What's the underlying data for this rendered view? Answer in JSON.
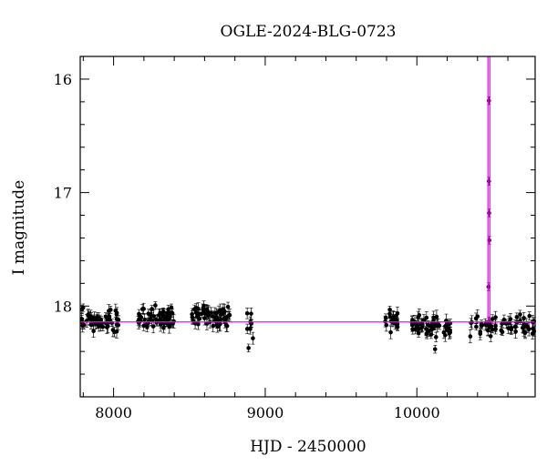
{
  "chart_data": {
    "type": "scatter",
    "title": "OGLE-2024-BLG-0723",
    "xlabel": "HJD - 2450000",
    "ylabel": "I magnitude",
    "xlim": [
      7780,
      10780
    ],
    "ylim": [
      18.8,
      15.8
    ],
    "y_inverted": true,
    "x_ticks": [
      8000,
      9000,
      10000
    ],
    "y_ticks": [
      16,
      17,
      18
    ],
    "x_tick_labels": [
      "8000",
      "9000",
      "10000"
    ],
    "y_tick_labels": [
      "16",
      "17",
      "18"
    ],
    "baseline_magnitude": 18.14,
    "peak_time": 10475,
    "point_color": "#000000",
    "model_color": "#ff00ff",
    "clusters": [
      {
        "start": 7790,
        "end": 8040,
        "mean": 18.12,
        "count": 55
      },
      {
        "start": 8160,
        "end": 8400,
        "mean": 18.1,
        "count": 60
      },
      {
        "start": 8510,
        "end": 8770,
        "mean": 18.1,
        "count": 60
      },
      {
        "start": 8880,
        "end": 8920,
        "mean": 18.18,
        "count": 8
      },
      {
        "start": 9790,
        "end": 9880,
        "mean": 18.12,
        "count": 22
      },
      {
        "start": 9960,
        "end": 10230,
        "mean": 18.17,
        "count": 55
      },
      {
        "start": 10350,
        "end": 10780,
        "mean": 18.18,
        "count": 60
      }
    ],
    "points": [
      {
        "x": 8890,
        "y": 18.37
      },
      {
        "x": 10120,
        "y": 18.38
      },
      {
        "x": 10475,
        "y": 16.19
      },
      {
        "x": 10475,
        "y": 16.9
      },
      {
        "x": 10476,
        "y": 17.18
      },
      {
        "x": 10477,
        "y": 17.42
      },
      {
        "x": 10473,
        "y": 17.83
      }
    ]
  }
}
